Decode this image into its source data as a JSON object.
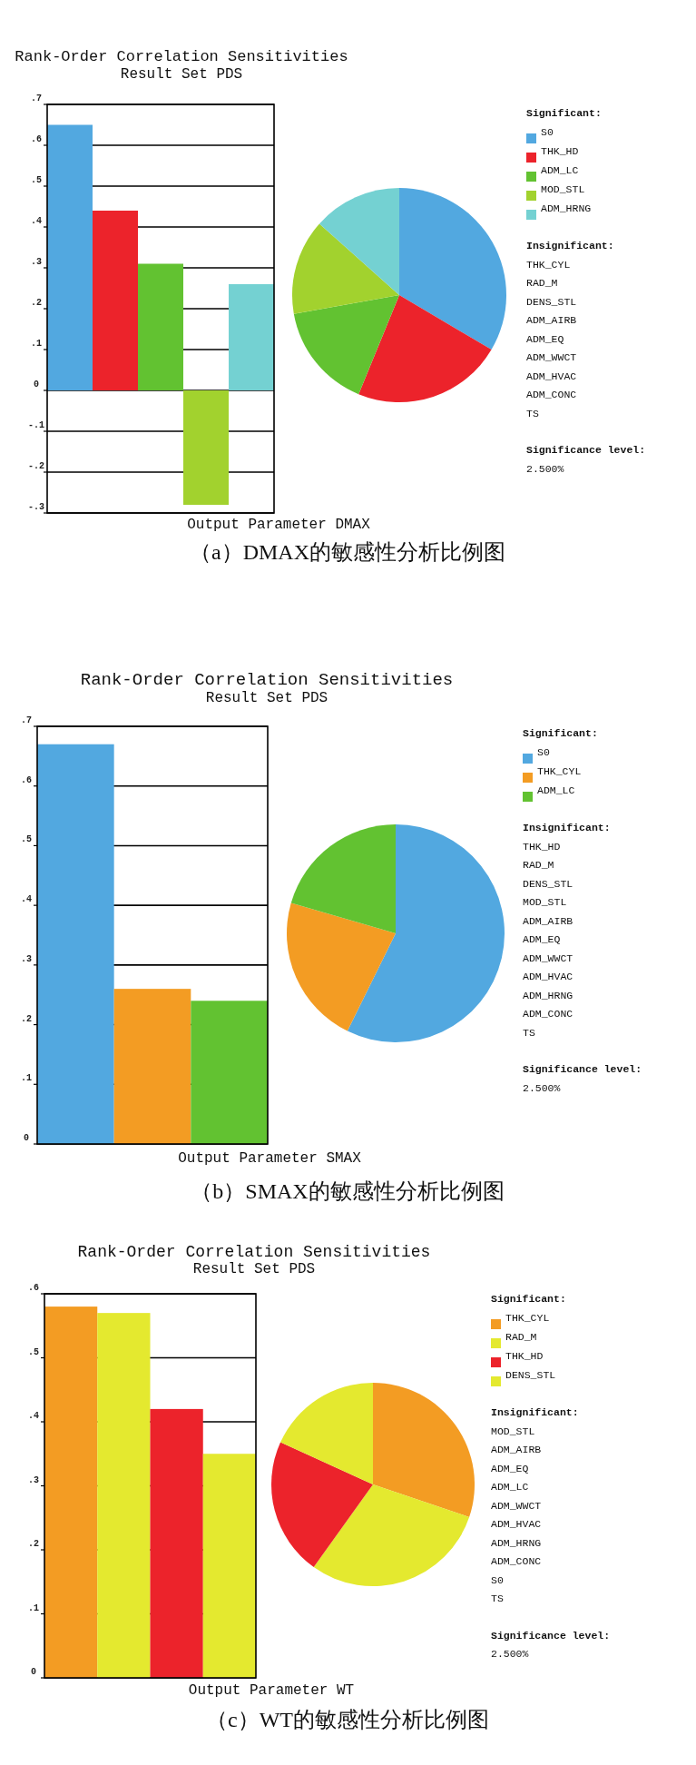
{
  "chart_data": [
    {
      "type": "bar",
      "title": "Rank-Order Correlation Sensitivities",
      "subtitle": "Result Set PDS",
      "xlabel": "Output Parameter DMAX",
      "categories": [
        null,
        null,
        null,
        null,
        null
      ],
      "values": [
        0.65,
        0.44,
        0.31,
        -0.28,
        0.26
      ],
      "colors": [
        "#52a8e0",
        "#ec232b",
        "#62c231",
        "#a2d22e",
        "#74d1d2"
      ],
      "ylim": [
        -0.3,
        0.7
      ],
      "yticks": [
        {
          "value": -0.3,
          "label": "-.3"
        },
        {
          "value": -0.2,
          "label": "-.2"
        },
        {
          "value": -0.1,
          "label": "-.1"
        },
        {
          "value": 0,
          "label": "0"
        },
        {
          "value": 0.1,
          "label": ".1"
        },
        {
          "value": 0.2,
          "label": ".2"
        },
        {
          "value": 0.3,
          "label": ".3"
        },
        {
          "value": 0.4,
          "label": ".4"
        },
        {
          "value": 0.5,
          "label": ".5"
        },
        {
          "value": 0.6,
          "label": ".6"
        },
        {
          "value": 0.7,
          "label": ".7"
        }
      ],
      "grid": "y",
      "annotations": [
        "（a）DMAX的敏感性分析比例图"
      ]
    },
    {
      "type": "pie",
      "categories": [
        "S0",
        "THK_HD",
        "ADM_LC",
        "MOD_STL",
        "ADM_HRNG"
      ],
      "values": [
        33.5,
        22.7,
        16.0,
        14.4,
        13.4
      ],
      "colors": [
        "#52a8e0",
        "#ec232b",
        "#62c231",
        "#a2d22e",
        "#74d1d2"
      ],
      "legend": "right",
      "legend_title": "Significant:",
      "annotations": [
        "Insignificant:",
        "THK_CYL",
        "RAD_M",
        "DENS_STL",
        "ADM_AIRB",
        "ADM_EQ",
        "ADM_WWCT",
        "ADM_HVAC",
        "ADM_CONC",
        "TS",
        "Significance level:",
        "2.500%"
      ]
    },
    {
      "type": "bar",
      "title": "Rank-Order Correlation Sensitivities",
      "subtitle": "Result Set PDS",
      "xlabel": "Output Parameter SMAX",
      "categories": [
        null,
        null,
        null
      ],
      "values": [
        0.67,
        0.26,
        0.24
      ],
      "colors": [
        "#52a8e0",
        "#f39c23",
        "#62c231"
      ],
      "ylim": [
        0,
        0.7
      ],
      "yticks": [
        {
          "value": 0,
          "label": "0"
        },
        {
          "value": 0.1,
          "label": ".1"
        },
        {
          "value": 0.2,
          "label": ".2"
        },
        {
          "value": 0.3,
          "label": ".3"
        },
        {
          "value": 0.4,
          "label": ".4"
        },
        {
          "value": 0.5,
          "label": ".5"
        },
        {
          "value": 0.6,
          "label": ".6"
        },
        {
          "value": 0.7,
          "label": ".7"
        }
      ],
      "grid": "y",
      "annotations": [
        "（b）SMAX的敏感性分析比例图"
      ]
    },
    {
      "type": "pie",
      "categories": [
        "S0",
        "THK_CYL",
        "ADM_LC"
      ],
      "values": [
        57.3,
        22.2,
        20.5
      ],
      "colors": [
        "#52a8e0",
        "#f39c23",
        "#62c231"
      ],
      "legend": "right",
      "legend_title": "Significant:",
      "annotations": [
        "Insignificant:",
        "THK_HD",
        "RAD_M",
        "DENS_STL",
        "MOD_STL",
        "ADM_AIRB",
        "ADM_EQ",
        "ADM_WWCT",
        "ADM_HVAC",
        "ADM_HRNG",
        "ADM_CONC",
        "TS",
        "Significance level:",
        "2.500%"
      ]
    },
    {
      "type": "bar",
      "title": "Rank-Order Correlation Sensitivities",
      "subtitle": "Result Set PDS",
      "xlabel": "Output Parameter WT",
      "categories": [
        null,
        null,
        null,
        null
      ],
      "values": [
        0.58,
        0.57,
        0.42,
        0.35
      ],
      "colors": [
        "#f39c23",
        "#e4e92f",
        "#ec232b",
        "#e4e92f"
      ],
      "ylim": [
        0,
        0.6
      ],
      "yticks": [
        {
          "value": 0,
          "label": "0"
        },
        {
          "value": 0.1,
          "label": ".1"
        },
        {
          "value": 0.2,
          "label": ".2"
        },
        {
          "value": 0.3,
          "label": ".3"
        },
        {
          "value": 0.4,
          "label": ".4"
        },
        {
          "value": 0.5,
          "label": ".5"
        },
        {
          "value": 0.6,
          "label": ".6"
        }
      ],
      "grid": "y",
      "annotations": [
        "（c）WT的敏感性分析比例图"
      ]
    },
    {
      "type": "pie",
      "categories": [
        "THK_CYL",
        "RAD_M",
        "THK_HD",
        "DENS_STL"
      ],
      "values": [
        30.2,
        29.7,
        21.9,
        18.2
      ],
      "colors": [
        "#f39c23",
        "#e4e92f",
        "#ec232b",
        "#e4e92f"
      ],
      "legend": "right",
      "legend_title": "Significant:",
      "annotations": [
        "Insignificant:",
        "MOD_STL",
        "ADM_AIRB",
        "ADM_EQ",
        "ADM_LC",
        "ADM_WWCT",
        "ADM_HVAC",
        "ADM_HRNG",
        "ADM_CONC",
        "S0",
        "TS",
        "Significance level:",
        "2.500%"
      ]
    }
  ]
}
